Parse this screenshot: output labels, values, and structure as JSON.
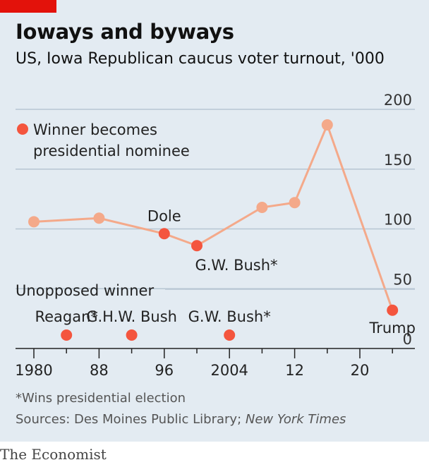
{
  "title": "Ioways and byways",
  "subtitle": "US, Iowa Republican caucus voter turnout, '000",
  "footnote": "*Wins presidential election",
  "sources_prefix": "Sources: Des Moines Public Library; ",
  "sources_italic": "New York Times",
  "brand": "The Economist",
  "colors": {
    "accent": "#e3120b",
    "line": "#f4a98a",
    "winner": "#f4553e",
    "panel": "#e3ebf2"
  },
  "chart_data": {
    "type": "line",
    "title": "Ioways and byways",
    "subtitle": "US, Iowa Republican caucus voter turnout, '000",
    "x_ticks": [
      1980,
      1988,
      1996,
      2004,
      2012,
      2020
    ],
    "x_tick_labels": [
      "1980",
      "88",
      "96",
      "2004",
      "12",
      "20"
    ],
    "y_ticks": [
      0,
      50,
      100,
      150,
      200
    ],
    "y_tick_labels": [
      "0",
      "50",
      "100",
      "150",
      "200"
    ],
    "ylim": [
      0,
      200
    ],
    "xlim": [
      1978,
      2024
    ],
    "grid": true,
    "series": [
      {
        "points": [
          {
            "year": 1980,
            "value": 106,
            "winner_nominee": false
          },
          {
            "year": 1988,
            "value": 109,
            "winner_nominee": false
          },
          {
            "year": 1996,
            "value": 96,
            "winner_nominee": true
          },
          {
            "year": 2000,
            "value": 86,
            "winner_nominee": true
          },
          {
            "year": 2008,
            "value": 118,
            "winner_nominee": false
          },
          {
            "year": 2012,
            "value": 122,
            "winner_nominee": false
          },
          {
            "year": 2016,
            "value": 187,
            "winner_nominee": false
          },
          {
            "year": 2024,
            "value": 32,
            "winner_nominee": true
          }
        ]
      }
    ],
    "legend": {
      "label_line1": "Winner becomes",
      "label_line2": "presidential nominee",
      "placement": "top-left"
    },
    "annotations": [
      {
        "text": "Dole",
        "year": 1996
      },
      {
        "text": "G.W. Bush*",
        "year": 2000
      },
      {
        "text": "Trump",
        "year": 2024
      }
    ],
    "unopposed": {
      "label": "Unopposed winner",
      "entries": [
        {
          "text": "Reagan*",
          "year": 1984
        },
        {
          "text": "G.H.W. Bush",
          "year": 1992
        },
        {
          "text": "G.W. Bush*",
          "year": 2004
        }
      ]
    }
  }
}
